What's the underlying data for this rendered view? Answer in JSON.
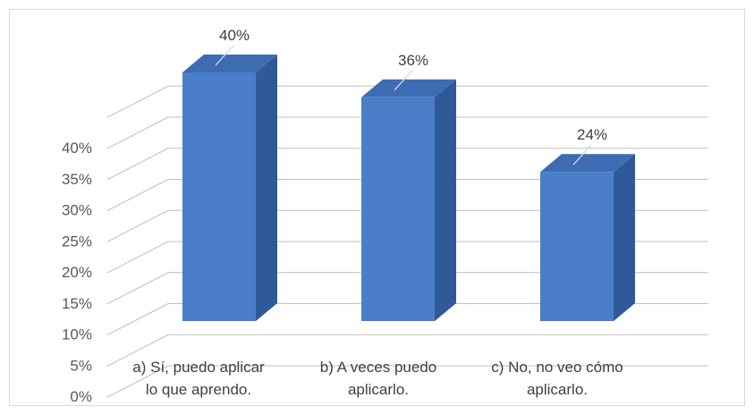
{
  "chart_data": {
    "type": "bar",
    "style": "3d-column",
    "categories": [
      [
        "a) Sí, puedo aplicar",
        "lo que aprendo."
      ],
      [
        "b) A veces puedo",
        "aplicarlo."
      ],
      [
        "c) No, no veo cómo",
        "aplicarlo."
      ]
    ],
    "values": [
      40,
      36,
      24
    ],
    "data_labels": [
      "40%",
      "36%",
      "24%"
    ],
    "yticks": [
      "0%",
      "5%",
      "10%",
      "15%",
      "20%",
      "25%",
      "30%",
      "35%",
      "40%"
    ],
    "ylim": [
      0,
      45
    ],
    "grid": true,
    "legend": "none",
    "colors": {
      "bar_front": "#4a7ec8",
      "bar_side": "#2f5a9a",
      "bar_top": "#3d6cb3",
      "grid": "#bfbfbf",
      "text": "#404040"
    }
  }
}
